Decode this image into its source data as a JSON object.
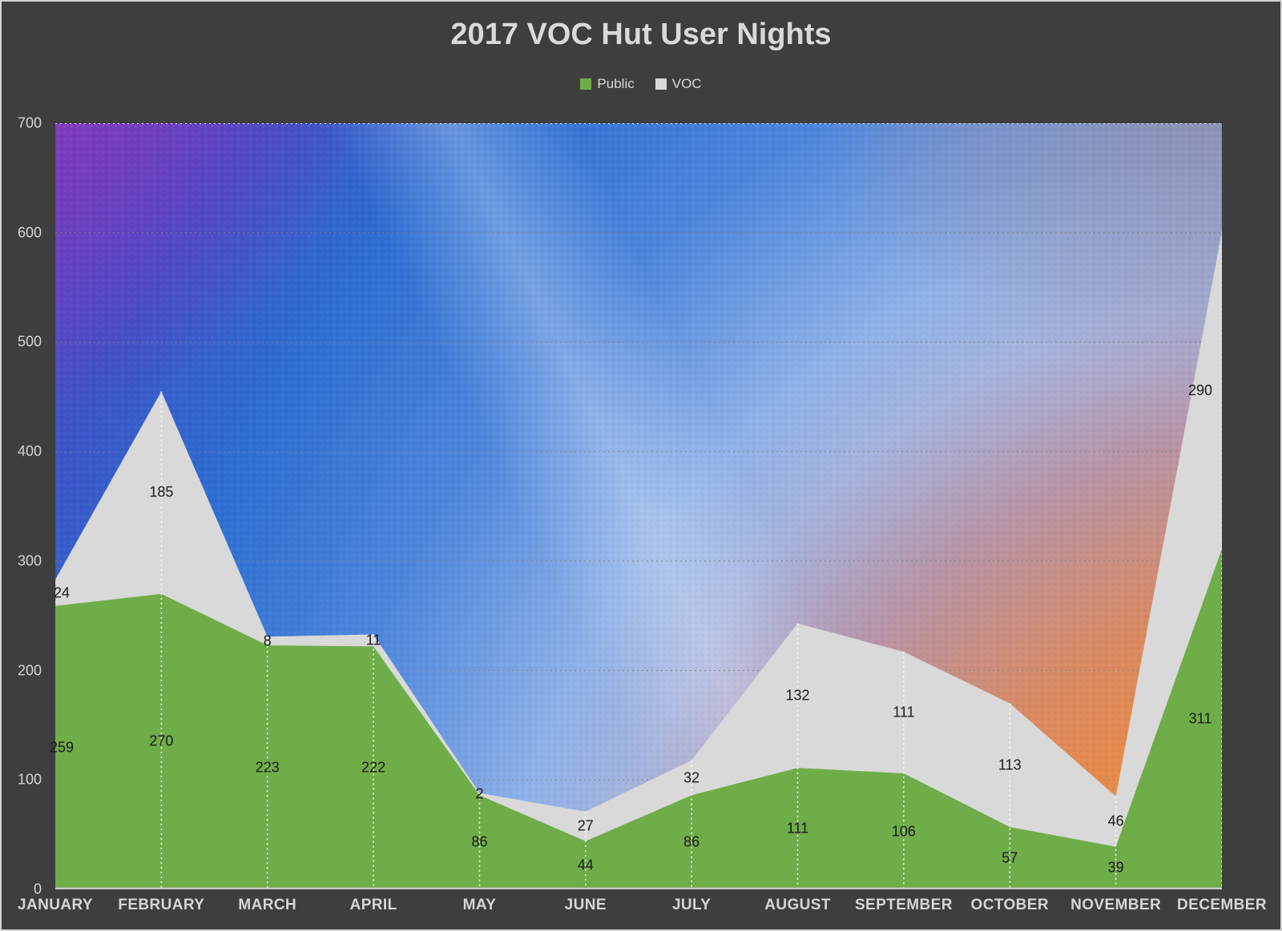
{
  "title": "2017 VOC Hut User Nights",
  "legend": {
    "items": [
      {
        "label": "Public",
        "color": "#6fad49"
      },
      {
        "label": "VOC",
        "color": "#d9d9d9"
      }
    ]
  },
  "chart_data": {
    "type": "area",
    "stacked": true,
    "title": "2017 VOC Hut User Nights",
    "categories": [
      "JANUARY",
      "FEBRUARY",
      "MARCH",
      "APRIL",
      "MAY",
      "JUNE",
      "JULY",
      "AUGUST",
      "SEPTEMBER",
      "OCTOBER",
      "NOVEMBER",
      "DECEMBER"
    ],
    "series": [
      {
        "name": "Public",
        "color": "#6fad49",
        "values": [
          259,
          270,
          223,
          222,
          86,
          44,
          86,
          111,
          106,
          57,
          39,
          311
        ]
      },
      {
        "name": "VOC",
        "color": "#d9d9d9",
        "values": [
          24,
          185,
          8,
          11,
          2,
          27,
          32,
          132,
          111,
          113,
          46,
          290
        ]
      }
    ],
    "stack_totals": [
      283,
      455,
      231,
      233,
      88,
      71,
      118,
      243,
      217,
      170,
      85,
      601
    ],
    "ylim": [
      0,
      700
    ],
    "yticks": [
      0,
      100,
      200,
      300,
      400,
      500,
      600,
      700
    ],
    "grid": "horizontal dotted",
    "drop_lines": "white dotted vertical at each month from stack top to axis",
    "legend_position": "top-center",
    "data_labels": "centered in band",
    "plot_background": "purple-blue-periwinkle-orange-gold sunset gradient"
  },
  "colors": {
    "canvas_bg": "#3e3e3e",
    "axis_text": "#d6d6d6",
    "title_text": "#d9d9d9",
    "data_label_text": "#1a1a1a",
    "axis_line": "#c9c9c9",
    "public_area": "#6fad49",
    "voc_area": "#d9d9d9"
  }
}
